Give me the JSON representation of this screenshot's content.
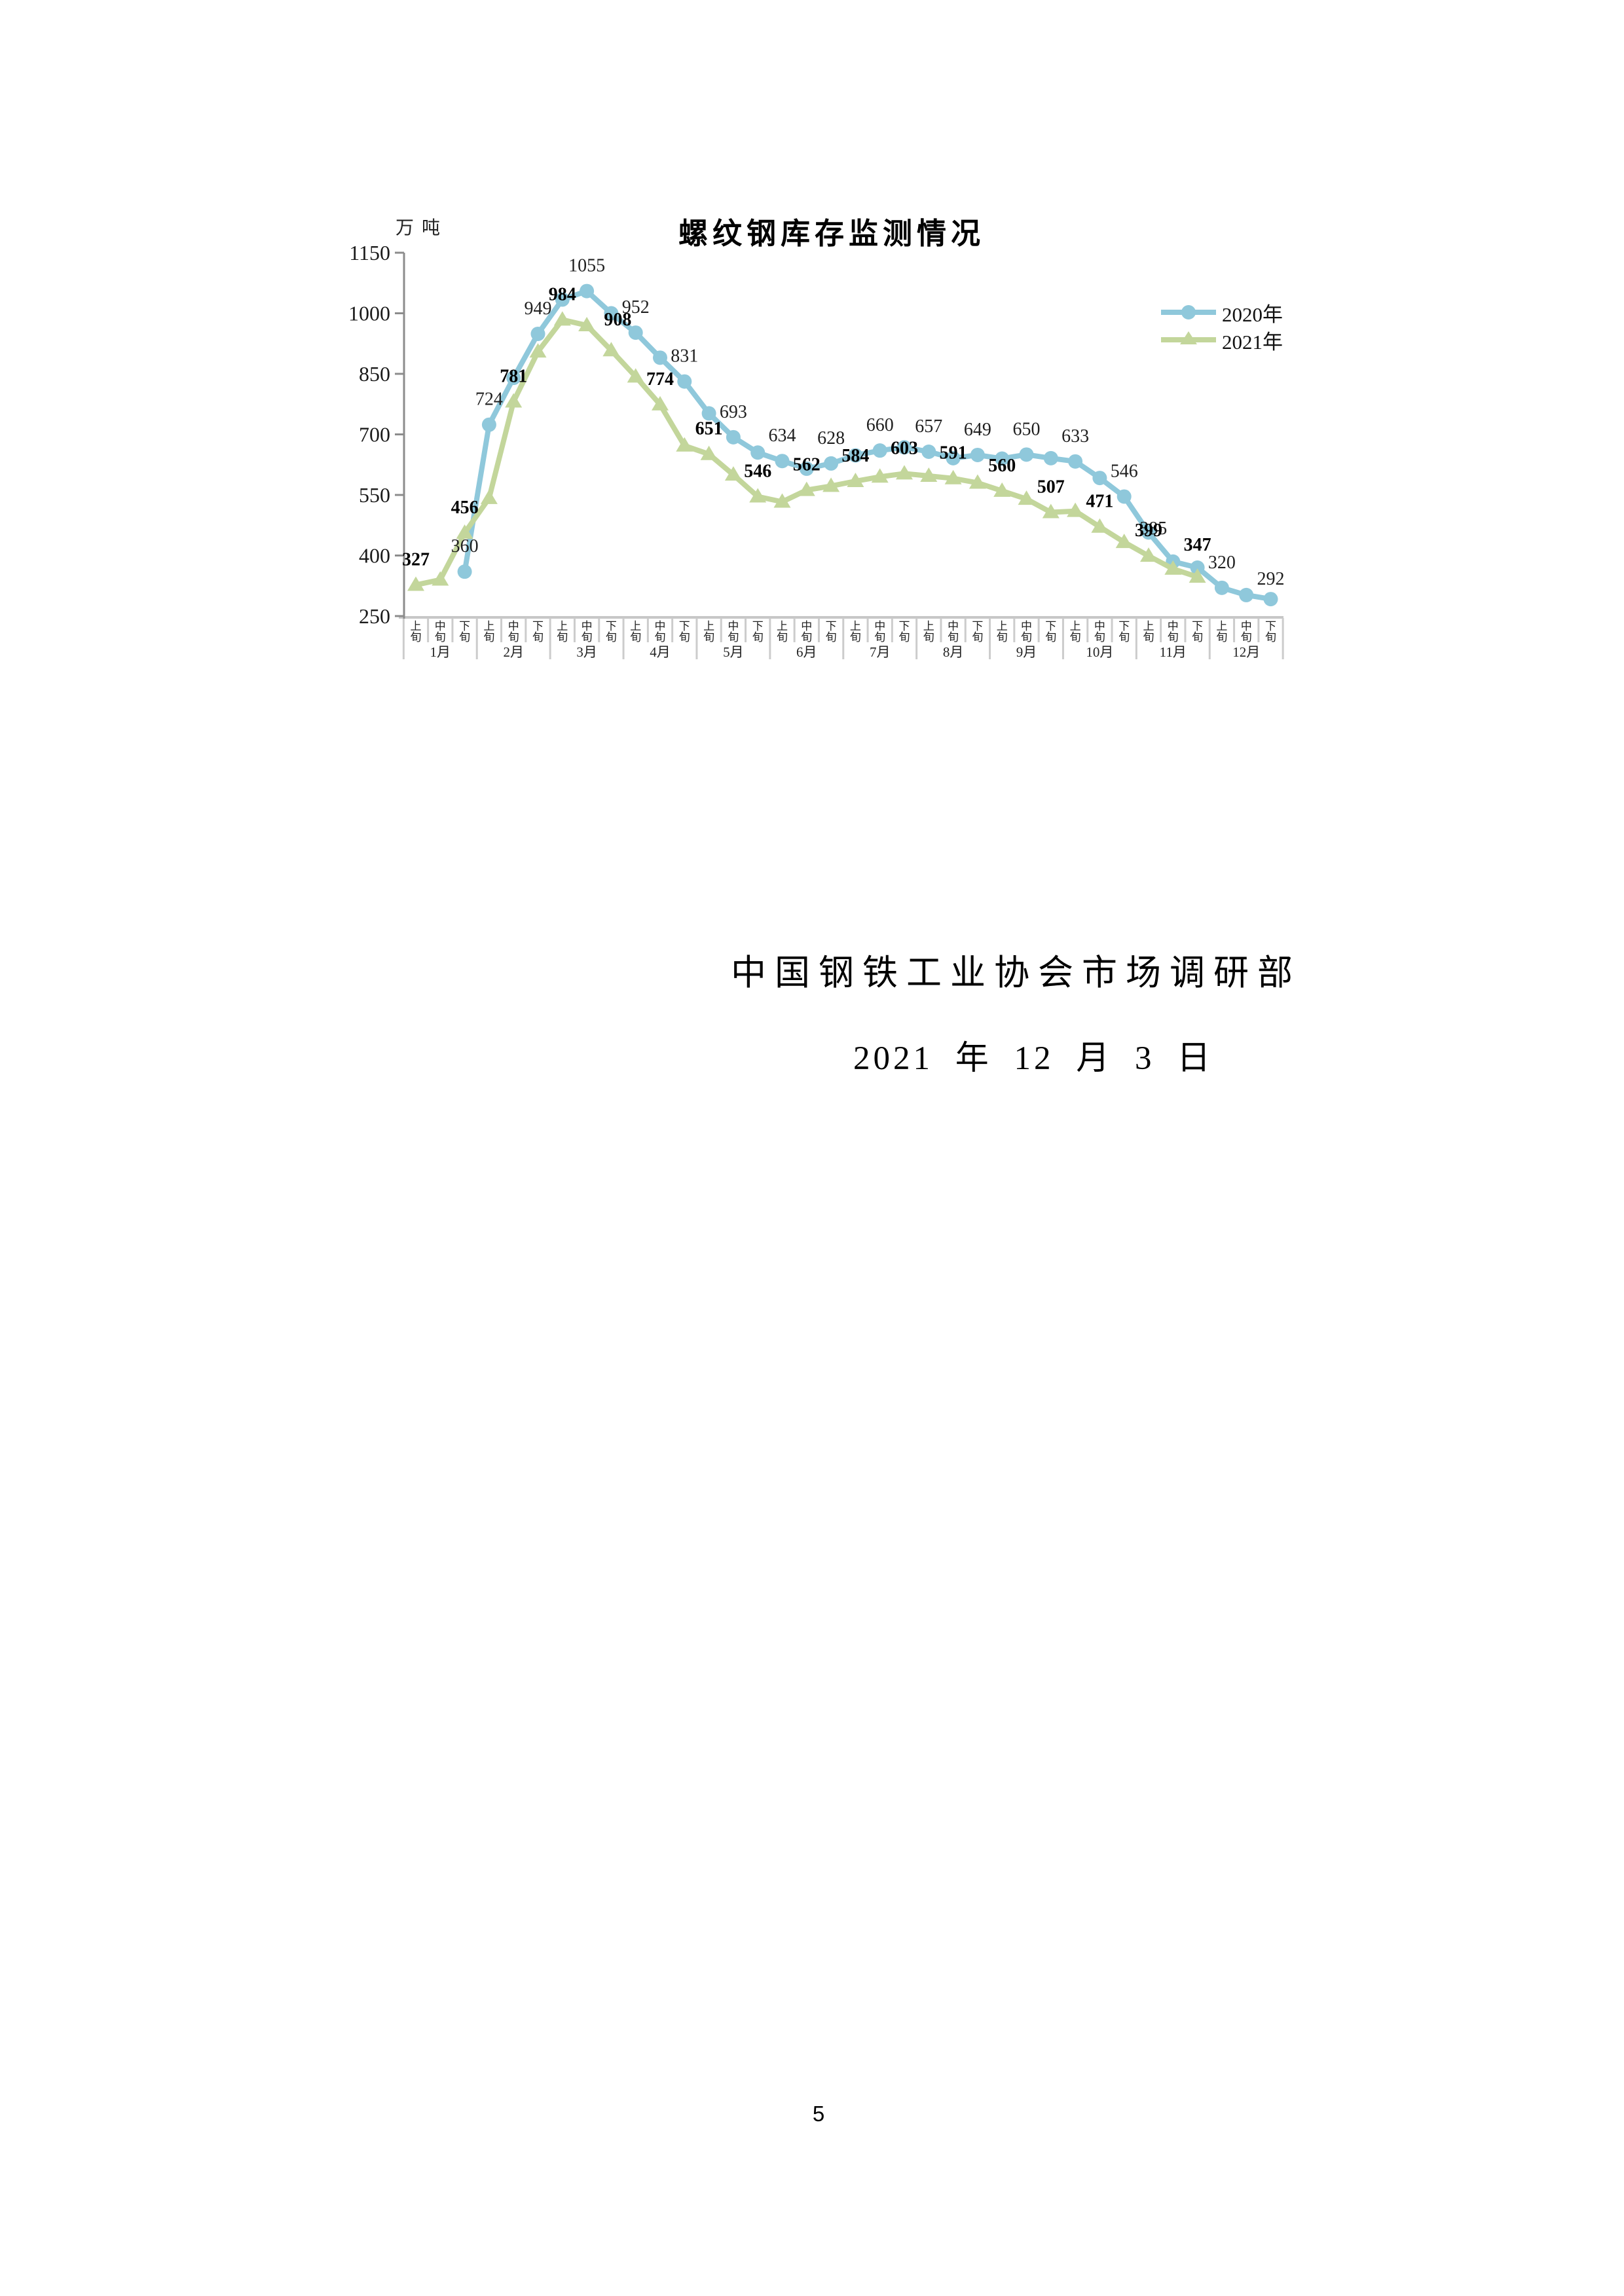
{
  "chart_data": {
    "type": "line",
    "title": "螺纹钢库存监测情况",
    "unit_label": "万吨",
    "ylim": [
      250,
      1150
    ],
    "yticks": [
      250,
      400,
      550,
      700,
      850,
      1000,
      1150
    ],
    "months": [
      "1月",
      "2月",
      "3月",
      "4月",
      "5月",
      "6月",
      "7月",
      "8月",
      "9月",
      "10月",
      "11月",
      "12月"
    ],
    "periods": [
      "上旬",
      "中旬",
      "下旬"
    ],
    "grid": false,
    "legend_position": "top-right",
    "series": [
      {
        "name": "2020年",
        "color": "#8FC8DB",
        "marker": "circle",
        "label_style": "regular",
        "values": [
          null,
          null,
          360,
          724,
          840,
          949,
          1034,
          1055,
          1000,
          952,
          890,
          831,
          752,
          693,
          655,
          634,
          615,
          628,
          648,
          660,
          668,
          657,
          641,
          649,
          640,
          650,
          641,
          633,
          592,
          546,
          457,
          385,
          370,
          320,
          302,
          292
        ],
        "point_labels": {
          "2": "360",
          "3": "724",
          "5": "949",
          "7": "1055",
          "9": "952",
          "11": "831",
          "13": "693",
          "15": "634",
          "17": "628",
          "19": "660",
          "21": "657",
          "23": "649",
          "25": "650",
          "27": "633",
          "29": "546",
          "31": "385",
          "33": "320",
          "35": "292"
        },
        "label_offsets": {
          "31": {
            "dx": -30,
            "dy": -12
          },
          "35": {
            "dy": 8
          }
        }
      },
      {
        "name": "2021年",
        "color": "#C3D69B",
        "marker": "triangle",
        "label_style": "bold",
        "values": [
          327,
          340,
          456,
          542,
          781,
          905,
          984,
          970,
          908,
          843,
          774,
          672,
          651,
          600,
          546,
          533,
          562,
          572,
          584,
          595,
          603,
          597,
          591,
          580,
          560,
          540,
          507,
          510,
          471,
          433,
          399,
          367,
          347,
          null,
          null,
          null
        ],
        "point_labels": {
          "0": "327",
          "2": "456",
          "4": "781",
          "6": "984",
          "8": "908",
          "10": "774",
          "12": "651",
          "14": "546",
          "16": "562",
          "18": "584",
          "20": "603",
          "22": "591",
          "24": "560",
          "26": "507",
          "28": "471",
          "30": "399",
          "32": "347"
        },
        "label_offsets": {
          "8": {
            "dx": 10,
            "dy": -8
          },
          "32": {
            "dy": -10
          }
        }
      }
    ]
  },
  "footer": {
    "organization": "中国钢铁工业协会市场调研部",
    "date": "2021 年 12 月 3 日",
    "page_number": "5"
  }
}
